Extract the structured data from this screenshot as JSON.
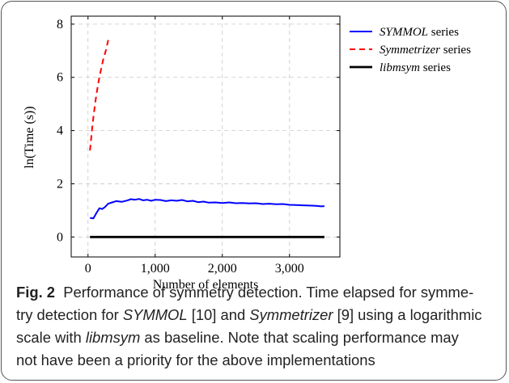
{
  "chart_data": {
    "type": "line",
    "title": "",
    "xlabel": "Number of elements",
    "ylabel": "ln(Time (s))",
    "xlim": [
      -250,
      3750
    ],
    "ylim": [
      -0.75,
      8.3
    ],
    "xticks": [
      0,
      1000,
      2000,
      3000
    ],
    "xtick_labels": [
      "0",
      "1,000",
      "2,000",
      "3,000"
    ],
    "yticks": [
      0,
      2,
      4,
      6,
      8
    ],
    "ytick_labels": [
      "0",
      "2",
      "4",
      "6",
      "8"
    ],
    "grid": true,
    "legend_position": "right",
    "series": [
      {
        "name_main": "SYMMOL",
        "name_suffix": " series",
        "color": "#0000ff",
        "dash": "solid",
        "x": [
          30,
          80,
          130,
          170,
          210,
          250,
          300,
          360,
          420,
          500,
          580,
          640,
          700,
          760,
          820,
          880,
          940,
          1000,
          1080,
          1160,
          1240,
          1320,
          1400,
          1480,
          1560,
          1640,
          1720,
          1800,
          1900,
          2000,
          2100,
          2200,
          2300,
          2400,
          2500,
          2600,
          2700,
          2800,
          2900,
          3000,
          3100,
          3200,
          3300,
          3400,
          3470,
          3520
        ],
        "y": [
          0.72,
          0.7,
          0.92,
          1.08,
          1.05,
          1.12,
          1.25,
          1.3,
          1.35,
          1.32,
          1.37,
          1.42,
          1.4,
          1.43,
          1.38,
          1.4,
          1.36,
          1.4,
          1.39,
          1.35,
          1.38,
          1.36,
          1.39,
          1.34,
          1.36,
          1.31,
          1.33,
          1.29,
          1.3,
          1.28,
          1.3,
          1.27,
          1.28,
          1.26,
          1.27,
          1.24,
          1.25,
          1.23,
          1.24,
          1.21,
          1.2,
          1.19,
          1.18,
          1.17,
          1.15,
          1.16
        ]
      },
      {
        "name_main": "Symmetrizer",
        "name_suffix": " series",
        "color": "#ff0000",
        "dash": "dashed",
        "x": [
          30,
          70,
          110,
          150,
          190,
          230,
          270,
          300
        ],
        "y": [
          3.25,
          4.3,
          5.1,
          5.75,
          6.25,
          6.7,
          7.05,
          7.4
        ]
      },
      {
        "name_main": "libmsym",
        "name_suffix": " series",
        "color": "#000000",
        "dash": "solid",
        "x": [
          30,
          3520
        ],
        "y": [
          0,
          0
        ]
      }
    ]
  },
  "caption": {
    "fig_label": "Fig. 2",
    "line1": "Performance of symmetry detection. Time elapsed for symme-",
    "line2_a": "try detection for ",
    "line2_b": "SYMMOL",
    "line2_c": " [10] and ",
    "line2_d": "Symmetrizer",
    "line2_e": " [9] using a logarithmic",
    "line3_a": "scale with ",
    "line3_b": "libmsym",
    "line3_c": " as baseline. Note that scaling performance may",
    "line4": "not have been a priority for the above implementations"
  }
}
